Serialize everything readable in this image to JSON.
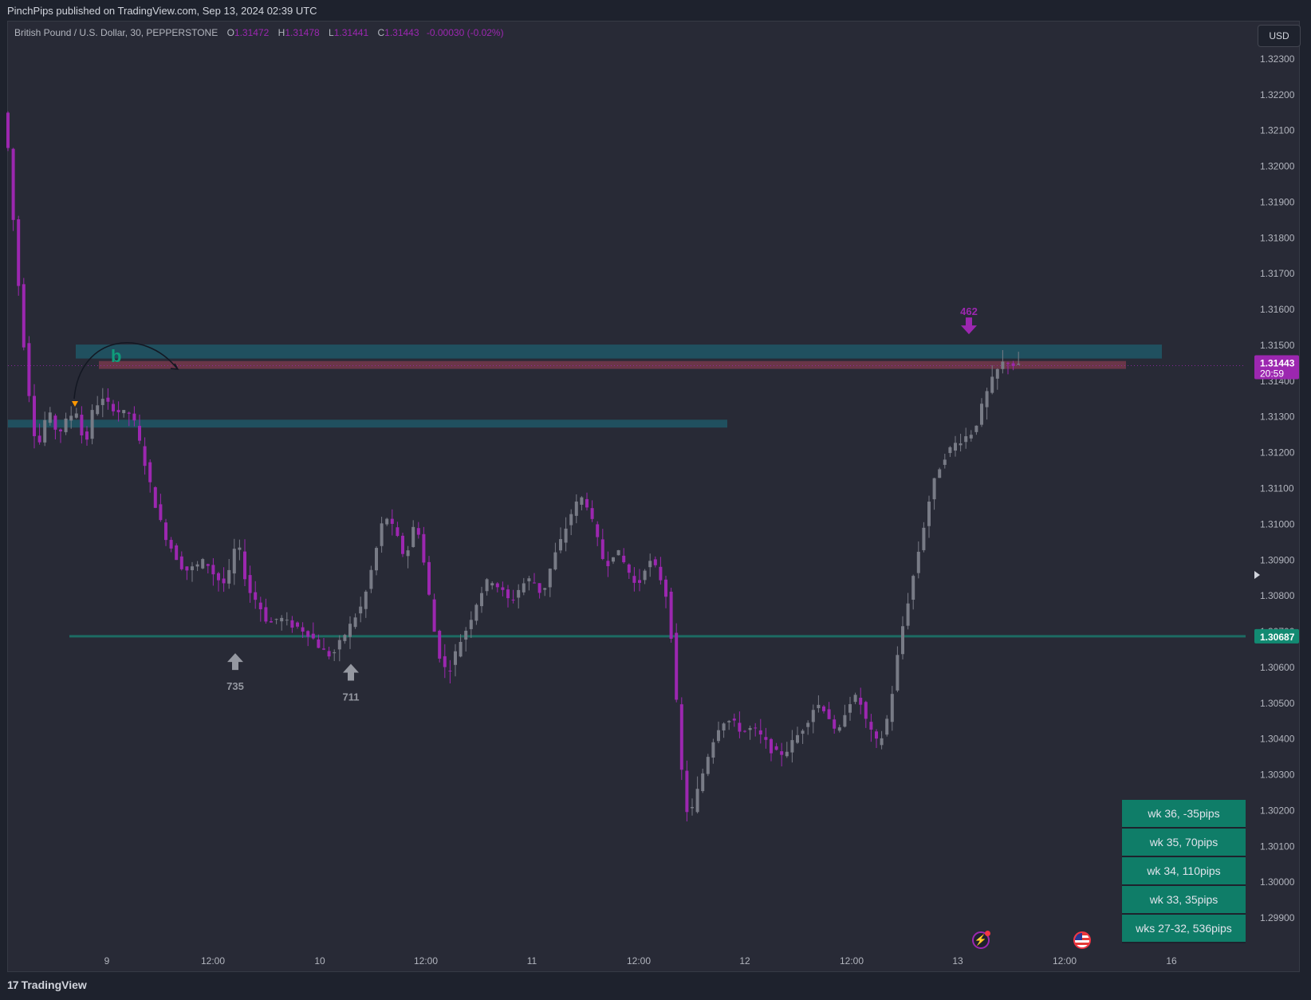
{
  "header": {
    "published_by": "PinchPips published on TradingView.com, Sep 13, 2024 02:39 UTC"
  },
  "legend": {
    "symbol": "British Pound / U.S. Dollar, 30, PEPPERSTONE",
    "o_label": "O",
    "o_value": "1.31472",
    "h_label": "H",
    "h_value": "1.31478",
    "l_label": "L",
    "l_value": "1.31441",
    "c_label": "C",
    "c_value": "1.31443",
    "change": "-0.00030 (-0.02%)"
  },
  "currency_button": "USD",
  "footer": {
    "brand": "TradingView"
  },
  "colors": {
    "background": "#282a36",
    "bear_candle": "#9c27b0",
    "bull_candle": "#787b86",
    "zone_blue": "#1f5766",
    "zone_red": "#7b3a4d",
    "support_line": "#1c6b63",
    "table_green": "#0f7d68",
    "price_label_purple": "#9c27b0",
    "price_label_teal": "#128a72"
  },
  "weekly_table": [
    "wk 36, -35pips",
    "wk 35, 70pips",
    "wk 34, 110pips",
    "wk 33, 35pips",
    "wks 27-32, 536pips"
  ],
  "icons": [
    "lightning-icon",
    "us-flag-icon",
    "chevron-right-icon",
    "tradingview-logo-icon"
  ],
  "chart_data": {
    "type": "candlestick",
    "title": "British Pound / U.S. Dollar, 30, PEPPERSTONE",
    "ylim": [
      1.2982,
      1.3238
    ],
    "y_ticks": [
      "1.32300",
      "1.32200",
      "1.32100",
      "1.32000",
      "1.31900",
      "1.31800",
      "1.31700",
      "1.31600",
      "1.31500",
      "1.31400",
      "1.31300",
      "1.31200",
      "1.31100",
      "1.31000",
      "1.30900",
      "1.30800",
      "1.30700",
      "1.30600",
      "1.30500",
      "1.30400",
      "1.30300",
      "1.30200",
      "1.30100",
      "1.30000",
      "1.29900"
    ],
    "x_ticks": [
      "9",
      "12:00",
      "10",
      "12:00",
      "11",
      "12:00",
      "12",
      "12:00",
      "13",
      "12:00",
      "16"
    ],
    "current_price": {
      "price": "1.31443",
      "countdown": "20:59",
      "value": 1.31443
    },
    "support_level": {
      "price": "1.30687",
      "value": 1.30687
    },
    "zones": [
      {
        "kind": "blue",
        "from": 1.31463,
        "to": 1.31502
      },
      {
        "kind": "red",
        "from": 1.31434,
        "to": 1.31456
      },
      {
        "kind": "blue",
        "from": 1.3127,
        "to": 1.31292
      }
    ],
    "markers": [
      {
        "label": "735",
        "direction": "up",
        "price": 1.30662
      },
      {
        "label": "711",
        "direction": "up",
        "price": 1.30632
      },
      {
        "label": "462",
        "direction": "down",
        "price": 1.31522
      }
    ],
    "annotations": [
      {
        "text": "b"
      }
    ],
    "path": [
      [
        0,
        1.3215
      ],
      [
        2,
        1.3175
      ],
      [
        4,
        1.3142
      ],
      [
        6,
        1.312
      ],
      [
        8,
        1.3132
      ],
      [
        10,
        1.3125
      ],
      [
        12,
        1.313
      ],
      [
        14,
        1.3132
      ],
      [
        15,
        1.3118
      ],
      [
        16,
        1.313
      ],
      [
        18,
        1.3135
      ],
      [
        20,
        1.3133
      ],
      [
        22,
        1.3131
      ],
      [
        24,
        1.3131
      ],
      [
        26,
        1.312
      ],
      [
        28,
        1.3108
      ],
      [
        30,
        1.3098
      ],
      [
        32,
        1.3092
      ],
      [
        34,
        1.3087
      ],
      [
        36,
        1.3088
      ],
      [
        38,
        1.309
      ],
      [
        40,
        1.3085
      ],
      [
        42,
        1.3083
      ],
      [
        44,
        1.3096
      ],
      [
        46,
        1.3082
      ],
      [
        48,
        1.3078
      ],
      [
        50,
        1.3072
      ],
      [
        52,
        1.3074
      ],
      [
        54,
        1.3072
      ],
      [
        56,
        1.3071
      ],
      [
        58,
        1.3069
      ],
      [
        60,
        1.3065
      ],
      [
        62,
        1.3063
      ],
      [
        64,
        1.3068
      ],
      [
        66,
        1.3073
      ],
      [
        68,
        1.3078
      ],
      [
        70,
        1.309
      ],
      [
        72,
        1.3103
      ],
      [
        74,
        1.3098
      ],
      [
        76,
        1.309
      ],
      [
        78,
        1.3102
      ],
      [
        80,
        1.3085
      ],
      [
        82,
        1.3065
      ],
      [
        84,
        1.3058
      ],
      [
        86,
        1.3066
      ],
      [
        88,
        1.3072
      ],
      [
        90,
        1.308
      ],
      [
        92,
        1.3085
      ],
      [
        94,
        1.3082
      ],
      [
        96,
        1.3078
      ],
      [
        98,
        1.3083
      ],
      [
        100,
        1.3085
      ],
      [
        102,
        1.308
      ],
      [
        104,
        1.309
      ],
      [
        106,
        1.3097
      ],
      [
        108,
        1.3105
      ],
      [
        110,
        1.3108
      ],
      [
        112,
        1.3098
      ],
      [
        114,
        1.3088
      ],
      [
        116,
        1.3093
      ],
      [
        118,
        1.3088
      ],
      [
        120,
        1.3082
      ],
      [
        122,
        1.309
      ],
      [
        124,
        1.3087
      ],
      [
        126,
        1.3078
      ],
      [
        127,
        1.306
      ],
      [
        128,
        1.304
      ],
      [
        129,
        1.3022
      ],
      [
        130,
        1.3018
      ],
      [
        132,
        1.3028
      ],
      [
        134,
        1.3038
      ],
      [
        136,
        1.3045
      ],
      [
        138,
        1.3045
      ],
      [
        140,
        1.3042
      ],
      [
        142,
        1.3043
      ],
      [
        144,
        1.304
      ],
      [
        146,
        1.3036
      ],
      [
        148,
        1.3036
      ],
      [
        150,
        1.304
      ],
      [
        152,
        1.3044
      ],
      [
        154,
        1.305
      ],
      [
        156,
        1.3048
      ],
      [
        158,
        1.304
      ],
      [
        160,
        1.305
      ],
      [
        162,
        1.3052
      ],
      [
        164,
        1.3043
      ],
      [
        166,
        1.3038
      ],
      [
        168,
        1.3048
      ],
      [
        170,
        1.3068
      ],
      [
        172,
        1.3082
      ],
      [
        174,
        1.3096
      ],
      [
        176,
        1.311
      ],
      [
        178,
        1.3118
      ],
      [
        180,
        1.3122
      ],
      [
        182,
        1.3124
      ],
      [
        184,
        1.3126
      ],
      [
        186,
        1.3135
      ],
      [
        188,
        1.3142
      ],
      [
        190,
        1.3146
      ],
      [
        192,
        1.3144
      ]
    ]
  }
}
